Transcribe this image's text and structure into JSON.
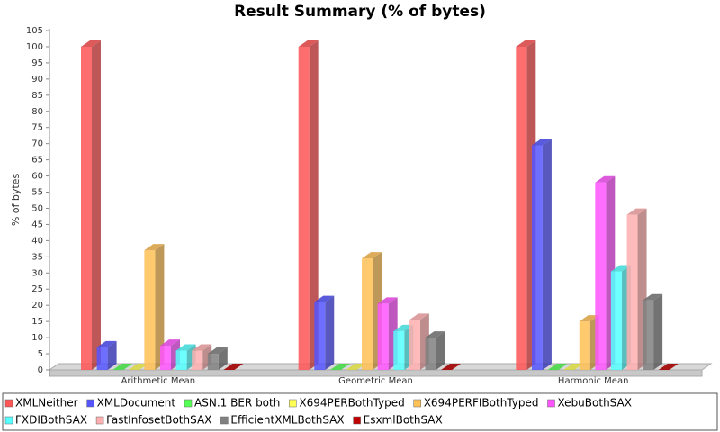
{
  "chart_data": {
    "type": "bar3d",
    "title": "Result Summary (% of bytes)",
    "y_label": "% of bytes",
    "categories": [
      "Arithmetic Mean",
      "Geometric Mean",
      "Harmonic Mean"
    ],
    "series": [
      {
        "name": "XMLNeither",
        "color": "#ff5555",
        "values": [
          100,
          100,
          100
        ]
      },
      {
        "name": "XMLDocument",
        "color": "#5555ff",
        "values": [
          7,
          21,
          69.5
        ]
      },
      {
        "name": "ASN.1 BER both",
        "color": "#55ff55",
        "values": [
          0,
          0,
          0
        ]
      },
      {
        "name": "X694PERBothTyped",
        "color": "#ffff55",
        "values": [
          0,
          0,
          0
        ]
      },
      {
        "name": "X694PERFIBothTyped",
        "color": "#ffc055",
        "values": [
          37,
          34.5,
          15
        ]
      },
      {
        "name": "XebuBothSAX",
        "color": "#ff55ff",
        "values": [
          7.5,
          20.5,
          58
        ]
      },
      {
        "name": "FXDIBothSAX",
        "color": "#55ffff",
        "values": [
          6,
          12,
          30.5
        ]
      },
      {
        "name": "FastInfosetBothSAX",
        "color": "#ffafaf",
        "values": [
          6,
          15.5,
          48
        ]
      },
      {
        "name": "EfficientXMLBothSAX",
        "color": "#808080",
        "values": [
          5,
          10,
          21.5
        ]
      },
      {
        "name": "EsxmlBothSAX",
        "color": "#c00000",
        "values": [
          0,
          0,
          0
        ]
      }
    ],
    "ylim": [
      0,
      105
    ],
    "yticks": [
      0,
      5,
      10,
      15,
      20,
      25,
      30,
      35,
      40,
      45,
      50,
      55,
      60,
      65,
      70,
      75,
      80,
      85,
      90,
      95,
      100,
      105
    ],
    "grid": false
  }
}
